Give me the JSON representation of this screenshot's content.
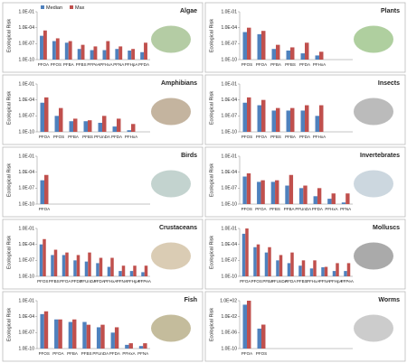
{
  "chart_data": [
    {
      "type": "bar",
      "title": "Algae",
      "y_label": "Ecological Risk",
      "log_scale": true,
      "legend": "upper left",
      "categories": [
        "PFOA",
        "PFOS",
        "PFBA",
        "PFBS",
        "PFPeA",
        "PFHxA",
        "PFNA",
        "PFHpA",
        "PFDA"
      ],
      "series": [
        {
          "name": "Median",
          "color": "#4f81bd",
          "values": [
            3e-06,
            3e-07,
            1.5e-07,
            1e-08,
            6e-09,
            6e-09,
            1e-08,
            5e-09,
            2.5e-09
          ]
        },
        {
          "name": "Max",
          "color": "#c0504d",
          "values": [
            3e-05,
            1e-06,
            3e-07,
            6e-08,
            3e-08,
            3e-07,
            3e-08,
            1e-08,
            1.5e-07
          ]
        }
      ],
      "ylim": [
        1e-10,
        0.1
      ],
      "yticks": [
        {
          "value": 1e-10,
          "label": "1.0E-10"
        },
        {
          "value": 1e-07,
          "label": "1.0E-07"
        },
        {
          "value": 0.0001,
          "label": "1.0E-04"
        },
        {
          "value": 0.1,
          "label": "1.0E-01"
        }
      ]
    },
    {
      "type": "bar",
      "title": "Plants",
      "y_label": "Ecological Risk",
      "log_scale": true,
      "categories": [
        "PFOS",
        "PFOA",
        "PFBA",
        "PFBS",
        "PFDA",
        "PFHxA"
      ],
      "series": [
        {
          "color": "#4f81bd",
          "values": [
            1.5e-05,
            6e-06,
            1e-08,
            5e-09,
            1.5e-09,
            6e-10
          ]
        },
        {
          "color": "#c0504d",
          "values": [
            0.0001,
            2.5e-05,
            6e-08,
            2e-08,
            1.5e-07,
            3e-09
          ]
        }
      ],
      "ylim": [
        1e-10,
        0.1
      ],
      "yticks": [
        {
          "value": 1e-10,
          "label": "1.0E-10"
        },
        {
          "value": 1e-07,
          "label": "1.0E-07"
        },
        {
          "value": 0.0001,
          "label": "1.0E-04"
        },
        {
          "value": 0.1,
          "label": "1.0E-01"
        }
      ]
    },
    {
      "type": "bar",
      "title": "Amphibians",
      "y_label": "Ecological Risk",
      "log_scale": true,
      "categories": [
        "PFOA",
        "PFOS",
        "PFBA",
        "PFBS",
        "PFUnDA",
        "PFDA",
        "PFHxA"
      ],
      "series": [
        {
          "color": "#4f81bd",
          "values": [
            3e-05,
            1e-07,
            1e-08,
            1e-08,
            5e-09,
            1e-09,
            2e-10
          ]
        },
        {
          "color": "#c0504d",
          "values": [
            0.0003,
            3e-06,
            3e-08,
            1.5e-08,
            1e-07,
            3e-08,
            3e-09
          ]
        }
      ],
      "ylim": [
        1e-10,
        0.1
      ],
      "yticks": [
        {
          "value": 1e-10,
          "label": "1.0E-10"
        },
        {
          "value": 1e-07,
          "label": "1.0E-07"
        },
        {
          "value": 0.0001,
          "label": "1.0E-04"
        },
        {
          "value": 0.1,
          "label": "1.0E-01"
        }
      ]
    },
    {
      "type": "bar",
      "title": "Insects",
      "y_label": "Ecological Risk",
      "log_scale": true,
      "categories": [
        "PFOS",
        "PFOA",
        "PFBS",
        "PFBA",
        "PFDA",
        "PFHxA"
      ],
      "series": [
        {
          "color": "#4f81bd",
          "values": [
            3e-05,
            1e-05,
            1e-06,
            1e-06,
            1e-06,
            1e-07
          ]
        },
        {
          "color": "#c0504d",
          "values": [
            0.0003,
            0.0001,
            3e-06,
            3e-06,
            1e-05,
            1e-05
          ]
        }
      ],
      "ylim": [
        1e-10,
        0.1
      ],
      "yticks": [
        {
          "value": 1e-10,
          "label": "1.0E-10"
        },
        {
          "value": 1e-07,
          "label": "1.0E-07"
        },
        {
          "value": 0.0001,
          "label": "1.0E-04"
        },
        {
          "value": 0.1,
          "label": "1.0E-01"
        }
      ]
    },
    {
      "type": "bar",
      "title": "Birds",
      "y_label": "Ecological Risk",
      "log_scale": true,
      "categories": [
        "PFOA"
      ],
      "series": [
        {
          "color": "#4f81bd",
          "values": [
            3e-06
          ]
        },
        {
          "color": "#c0504d",
          "values": [
            3e-05
          ]
        }
      ],
      "ylim": [
        1e-10,
        0.1
      ],
      "yticks": [
        {
          "value": 1e-10,
          "label": "1.0E-10"
        },
        {
          "value": 1e-07,
          "label": "1.0E-07"
        },
        {
          "value": 0.0001,
          "label": "1.0E-04"
        },
        {
          "value": 0.1,
          "label": "1.0E-01"
        }
      ]
    },
    {
      "type": "bar",
      "title": "Invertebrates",
      "y_label": "Ecological Risk",
      "log_scale": true,
      "categories": [
        "PFOS",
        "PFOA",
        "PFBS",
        "PFBA",
        "PFUnDA",
        "PFDA",
        "PFHxA",
        "PFNA"
      ],
      "series": [
        {
          "color": "#4f81bd",
          "values": [
            1.5e-05,
            1.5e-06,
            1.5e-06,
            3e-07,
            1e-07,
            3e-09,
            1e-09,
            2e-10
          ]
        },
        {
          "color": "#c0504d",
          "values": [
            6e-05,
            3e-06,
            3e-06,
            3e-05,
            3e-07,
            1e-07,
            1e-08,
            1e-08
          ]
        }
      ],
      "ylim": [
        1e-10,
        0.1
      ],
      "yticks": [
        {
          "value": 1e-10,
          "label": "1.0E-10"
        },
        {
          "value": 1e-07,
          "label": "1.0E-07"
        },
        {
          "value": 0.0001,
          "label": "1.0E-04"
        },
        {
          "value": 0.1,
          "label": "1.0E-01"
        }
      ]
    },
    {
      "type": "bar",
      "title": "Crustaceans",
      "y_label": "Ecological Risk",
      "log_scale": true,
      "categories": [
        "PFOS",
        "PFBS",
        "PFOA",
        "PFDS",
        "PFUnDA",
        "PFDA",
        "PFHxA",
        "PFNA",
        "PFHpA",
        "PFPeA"
      ],
      "series": [
        {
          "color": "#4f81bd",
          "values": [
            0.0001,
            1e-06,
            1e-06,
            1e-07,
            6e-08,
            3e-08,
            6e-09,
            1e-09,
            1e-09,
            6e-10
          ]
        },
        {
          "color": "#c0504d",
          "values": [
            0.001,
            1e-05,
            3e-06,
            1e-06,
            3e-06,
            3e-07,
            3e-07,
            1e-08,
            1e-08,
            1e-08
          ]
        }
      ],
      "ylim": [
        1e-10,
        0.1
      ],
      "yticks": [
        {
          "value": 1e-10,
          "label": "1.0E-10"
        },
        {
          "value": 1e-07,
          "label": "1.0E-07"
        },
        {
          "value": 0.0001,
          "label": "1.0E-04"
        },
        {
          "value": 0.1,
          "label": "1.0E-01"
        }
      ]
    },
    {
      "type": "bar",
      "title": "Molluscs",
      "y_label": "Ecological Risk",
      "log_scale": true,
      "categories": [
        "PFOA",
        "PFOS",
        "PFBA",
        "PFUnDA",
        "PFDA",
        "PFBS",
        "PFHxA",
        "PFNA",
        "PFHpA",
        "PFPeA"
      ],
      "series": [
        {
          "color": "#4f81bd",
          "values": [
            0.01,
            3e-05,
            3e-06,
            1e-07,
            3e-08,
            1e-08,
            3e-09,
            5e-09,
            1e-09,
            1e-09
          ]
        },
        {
          "color": "#c0504d",
          "values": [
            0.1,
            0.0001,
            3e-05,
            1e-06,
            3e-06,
            1e-07,
            1e-07,
            6e-09,
            3e-08,
            3e-08
          ]
        }
      ],
      "ylim": [
        1e-10,
        0.1
      ],
      "yticks": [
        {
          "value": 1e-10,
          "label": "1.0E-10"
        },
        {
          "value": 1e-07,
          "label": "1.0E-07"
        },
        {
          "value": 0.0001,
          "label": "1.0E-04"
        },
        {
          "value": 0.1,
          "label": "1.0E-01"
        }
      ]
    },
    {
      "type": "bar",
      "title": "Fish",
      "y_label": "Ecological Risk",
      "log_scale": true,
      "categories": [
        "PFOS",
        "PFOA",
        "PFBA",
        "PFBS",
        "PFUnDA",
        "PFDA",
        "PFHxA",
        "PFNA"
      ],
      "series": [
        {
          "color": "#4f81bd",
          "values": [
            0.0003,
            3e-05,
            1e-05,
            1e-05,
            1e-06,
            1e-07,
            5e-10,
            3e-10
          ]
        },
        {
          "color": "#c0504d",
          "values": [
            0.001,
            3e-05,
            3e-05,
            3e-06,
            3e-06,
            1e-06,
            1e-09,
            1e-09
          ]
        }
      ],
      "ylim": [
        1e-10,
        0.1
      ],
      "yticks": [
        {
          "value": 1e-10,
          "label": "1.0E-10"
        },
        {
          "value": 1e-07,
          "label": "1.0E-07"
        },
        {
          "value": 0.0001,
          "label": "1.0E-04"
        },
        {
          "value": 0.1,
          "label": "1.0E-01"
        }
      ]
    },
    {
      "type": "bar",
      "title": "Worms",
      "y_label": "Ecological Risk",
      "log_scale": true,
      "categories": [
        "PFOA",
        "PFOS"
      ],
      "series": [
        {
          "color": "#4f81bd",
          "values": [
            10,
            1e-05
          ]
        },
        {
          "color": "#c0504d",
          "values": [
            100,
            0.0001
          ]
        }
      ],
      "ylim": [
        1e-10,
        100
      ],
      "yticks": [
        {
          "value": 1e-10,
          "label": "1.0E-10"
        },
        {
          "value": 1e-06,
          "label": "1.0E-06"
        },
        {
          "value": 0.01,
          "label": "1.0E-02"
        },
        {
          "value": 100,
          "label": "1.0E+02"
        }
      ]
    }
  ]
}
